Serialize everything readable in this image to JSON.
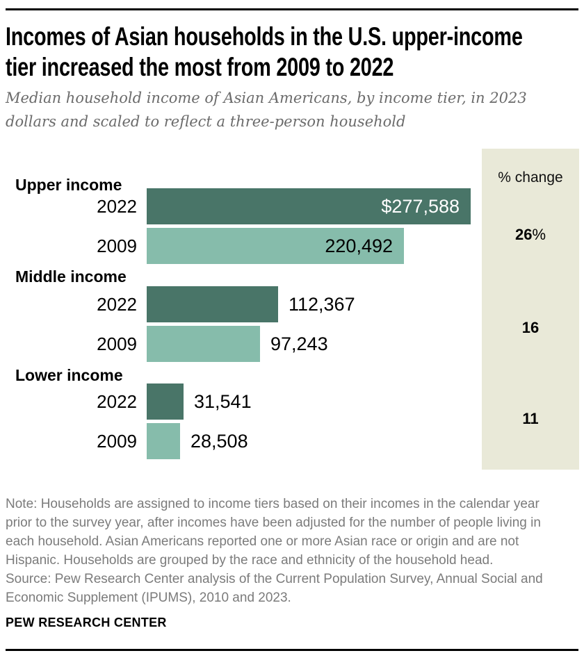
{
  "header": {
    "title_lines": [
      "Incomes of Asian households in the U.S. upper-income",
      "tier increased the most from 2009 to 2022"
    ],
    "subtitle_lines": [
      "Median household income of Asian Americans, by income tier, in 2023",
      "dollars and scaled to reflect a three-person household"
    ]
  },
  "chart_data": {
    "type": "bar",
    "title": "Incomes of Asian households in the U.S. upper-income tier increased the most from 2009 to 2022",
    "subtitle": "Median household income of Asian Americans, by income tier, in 2023 dollars and scaled to reflect a three-person household",
    "orientation": "horizontal",
    "pct_header": "% change",
    "categories": [
      "Upper income",
      "Middle income",
      "Lower income"
    ],
    "series": [
      {
        "name": "2022",
        "values": [
          277588,
          112367,
          31541
        ]
      },
      {
        "name": "2009",
        "values": [
          220492,
          97243,
          28508
        ]
      }
    ],
    "groups": [
      {
        "tier": "Upper income",
        "bars": [
          {
            "year": "2022",
            "value": 277588,
            "label": "$277,588"
          },
          {
            "year": "2009",
            "value": 220492,
            "label": "220,492"
          }
        ],
        "pct_change": "26%"
      },
      {
        "tier": "Middle income",
        "bars": [
          {
            "year": "2022",
            "value": 112367,
            "label": "112,367"
          },
          {
            "year": "2009",
            "value": 97243,
            "label": "97,243"
          }
        ],
        "pct_change": "16"
      },
      {
        "tier": "Lower income",
        "bars": [
          {
            "year": "2022",
            "value": 31541,
            "label": "31,541"
          },
          {
            "year": "2009",
            "value": 28508,
            "label": "28,508"
          }
        ],
        "pct_change": "11"
      }
    ],
    "colors": {
      "bar_2022": "#497568",
      "bar_2009": "#86BCAB",
      "panel_bg": "#E9E9D8"
    }
  },
  "footer": {
    "note_lines": [
      "Note: Households are assigned to income tiers based on their incomes in the calendar year",
      "prior to the survey year, after incomes have been adjusted for the number of people living in",
      "each household. Asian Americans reported one or more Asian race or origin and are not",
      "Hispanic. Households are grouped by the race and ethnicity of the household head.",
      "Source: Pew Research Center analysis of the Current Population Survey, Annual Social and",
      "Economic Supplement (IPUMS), 2010 and 2023."
    ],
    "branding": "PEW RESEARCH CENTER"
  }
}
